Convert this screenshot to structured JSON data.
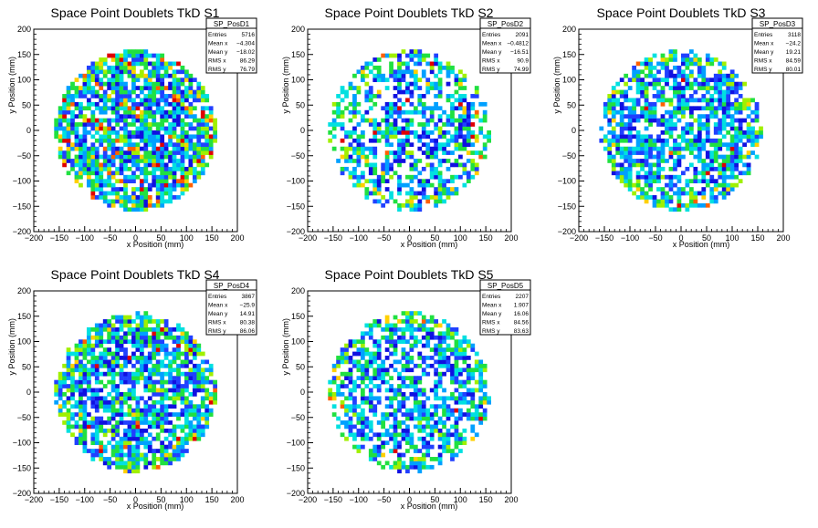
{
  "colors": {
    "frame": "#000000",
    "palette": [
      "#1010e0",
      "#2040ff",
      "#00a0ff",
      "#00e0e0",
      "#20e040",
      "#a0f000",
      "#ffd000",
      "#ff6000",
      "#e00000"
    ]
  },
  "chart_data": [
    {
      "type": "heatmap",
      "title": "Space Point Doublets TkD S1",
      "xlabel": "x Position (mm)",
      "ylabel": "y Position (mm)",
      "xlim": [
        -200,
        200
      ],
      "ylim": [
        -200,
        200
      ],
      "xticks": [
        "−200",
        "−150",
        "−100",
        "−50",
        "0",
        "50",
        "100",
        "150",
        "200"
      ],
      "yticks": [
        "−200",
        "−150",
        "−100",
        "−50",
        "0",
        "50",
        "100",
        "150",
        "200"
      ],
      "stats": {
        "name": "SP_PosD1",
        "rows": [
          {
            "label": "Entries",
            "value": "5716"
          },
          {
            "label": "Mean x",
            "value": "−4.304"
          },
          {
            "label": "Mean y",
            "value": "−18.02"
          },
          {
            "label": "RMS x",
            "value": "86.29"
          },
          {
            "label": "RMS y",
            "value": "76.79"
          }
        ]
      }
    },
    {
      "type": "heatmap",
      "title": "Space Point Doublets TkD S2",
      "xlabel": "x Position (mm)",
      "ylabel": "y Position (mm)",
      "xlim": [
        -200,
        200
      ],
      "ylim": [
        -200,
        200
      ],
      "xticks": [
        "−200",
        "−150",
        "−100",
        "−50",
        "0",
        "50",
        "100",
        "150",
        "200"
      ],
      "yticks": [
        "−200",
        "−150",
        "−100",
        "−50",
        "0",
        "50",
        "100",
        "150",
        "200"
      ],
      "stats": {
        "name": "SP_PosD2",
        "rows": [
          {
            "label": "Entries",
            "value": "2091"
          },
          {
            "label": "Mean x",
            "value": "−0.4812"
          },
          {
            "label": "Mean y",
            "value": "−16.51"
          },
          {
            "label": "RMS x",
            "value": "90.9"
          },
          {
            "label": "RMS y",
            "value": "74.99"
          }
        ]
      }
    },
    {
      "type": "heatmap",
      "title": "Space Point Doublets TkD S3",
      "xlabel": "x Position (mm)",
      "ylabel": "y Position (mm)",
      "xlim": [
        -200,
        200
      ],
      "ylim": [
        -200,
        200
      ],
      "xticks": [
        "−200",
        "−150",
        "−100",
        "−50",
        "0",
        "50",
        "100",
        "150",
        "200"
      ],
      "yticks": [
        "−200",
        "−150",
        "−100",
        "−50",
        "0",
        "50",
        "100",
        "150",
        "200"
      ],
      "stats": {
        "name": "SP_PosD3",
        "rows": [
          {
            "label": "Entries",
            "value": "3118"
          },
          {
            "label": "Mean x",
            "value": "−24.2"
          },
          {
            "label": "Mean y",
            "value": "19.21"
          },
          {
            "label": "RMS x",
            "value": "84.59"
          },
          {
            "label": "RMS y",
            "value": "80.01"
          }
        ]
      }
    },
    {
      "type": "heatmap",
      "title": "Space Point Doublets TkD S4",
      "xlabel": "x Position (mm)",
      "ylabel": "y Position (mm)",
      "xlim": [
        -200,
        200
      ],
      "ylim": [
        -200,
        200
      ],
      "xticks": [
        "−200",
        "−150",
        "−100",
        "−50",
        "0",
        "50",
        "100",
        "150",
        "200"
      ],
      "yticks": [
        "−200",
        "−150",
        "−100",
        "−50",
        "0",
        "50",
        "100",
        "150",
        "200"
      ],
      "stats": {
        "name": "SP_PosD4",
        "rows": [
          {
            "label": "Entries",
            "value": "3867"
          },
          {
            "label": "Mean x",
            "value": "−25.9"
          },
          {
            "label": "Mean y",
            "value": "14.91"
          },
          {
            "label": "RMS x",
            "value": "80.38"
          },
          {
            "label": "RMS y",
            "value": "86.06"
          }
        ]
      }
    },
    {
      "type": "heatmap",
      "title": "Space Point Doublets TkD S5",
      "xlabel": "x Position (mm)",
      "ylabel": "y Position (mm)",
      "xlim": [
        -200,
        200
      ],
      "ylim": [
        -200,
        200
      ],
      "xticks": [
        "−200",
        "−150",
        "−100",
        "−50",
        "0",
        "50",
        "100",
        "150",
        "200"
      ],
      "yticks": [
        "−200",
        "−150",
        "−100",
        "−50",
        "0",
        "50",
        "100",
        "150",
        "200"
      ],
      "stats": {
        "name": "SP_PosD5",
        "rows": [
          {
            "label": "Entries",
            "value": "2207"
          },
          {
            "label": "Mean x",
            "value": "1.907"
          },
          {
            "label": "Mean y",
            "value": "16.06"
          },
          {
            "label": "RMS x",
            "value": "84.56"
          },
          {
            "label": "RMS y",
            "value": "83.63"
          }
        ]
      }
    }
  ]
}
